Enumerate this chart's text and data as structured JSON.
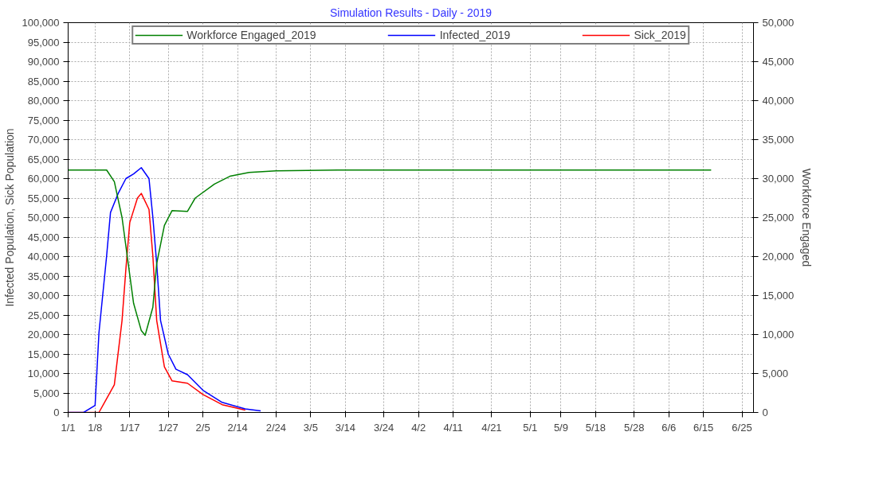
{
  "chart_data": {
    "type": "line",
    "title": "Simulation Results - Daily - 2019",
    "ylabel": "Infected Population, Sick Population",
    "y2label": "Workforce Engaged",
    "series": [
      {
        "name": "Workforce Engaged_2019",
        "color": "#008000",
        "axis": "y2",
        "x": [
          "2019-01-01",
          "2019-01-11",
          "2019-01-13",
          "2019-01-15",
          "2019-01-18",
          "2019-01-20",
          "2019-01-21",
          "2019-01-23",
          "2019-01-24",
          "2019-01-26",
          "2019-01-28",
          "2019-02-01",
          "2019-02-03",
          "2019-02-08",
          "2019-02-12",
          "2019-02-17",
          "2019-02-24",
          "2019-03-12",
          "2019-06-17"
        ],
        "values": [
          31100,
          31100,
          29600,
          25000,
          14000,
          10500,
          9900,
          13500,
          19100,
          24000,
          25900,
          25800,
          27500,
          29300,
          30300,
          30800,
          31000,
          31100,
          31100
        ]
      },
      {
        "name": "Infected_2019",
        "color": "#0000ff",
        "x": [
          "2019-01-01",
          "2019-01-05",
          "2019-01-08",
          "2019-01-09",
          "2019-01-11",
          "2019-01-12",
          "2019-01-14",
          "2019-01-16",
          "2019-01-18",
          "2019-01-20",
          "2019-01-22",
          "2019-01-23",
          "2019-01-24",
          "2019-01-25",
          "2019-01-27",
          "2019-01-29",
          "2019-02-01",
          "2019-02-05",
          "2019-02-10",
          "2019-02-16",
          "2019-02-20"
        ],
        "values": [
          0,
          0,
          1800,
          20400,
          40200,
          51300,
          56200,
          60000,
          61200,
          62800,
          60000,
          50100,
          38200,
          23600,
          15000,
          11100,
          9700,
          5700,
          2600,
          900,
          400
        ]
      },
      {
        "name": "Sick_2019",
        "color": "#ff0000",
        "x": [
          "2019-01-01",
          "2019-01-09",
          "2019-01-13",
          "2019-01-15",
          "2019-01-16",
          "2019-01-17",
          "2019-01-19",
          "2019-01-20",
          "2019-01-22",
          "2019-01-23",
          "2019-01-24",
          "2019-01-26",
          "2019-01-28",
          "2019-02-01",
          "2019-02-05",
          "2019-02-10",
          "2019-02-16"
        ],
        "values": [
          0,
          0,
          7100,
          23600,
          36800,
          48700,
          55000,
          56200,
          52100,
          40200,
          23600,
          11700,
          8100,
          7500,
          4600,
          2000,
          600
        ]
      }
    ],
    "xlim": [
      "2019-01-01",
      "2019-06-28"
    ],
    "xticks": [
      {
        "value": "2019-01-01",
        "label": "1/1"
      },
      {
        "value": "2019-01-08",
        "label": "1/8"
      },
      {
        "value": "2019-01-17",
        "label": "1/17"
      },
      {
        "value": "2019-01-27",
        "label": "1/27"
      },
      {
        "value": "2019-02-05",
        "label": "2/5"
      },
      {
        "value": "2019-02-14",
        "label": "2/14"
      },
      {
        "value": "2019-02-24",
        "label": "2/24"
      },
      {
        "value": "2019-03-05",
        "label": "3/5"
      },
      {
        "value": "2019-03-14",
        "label": "3/14"
      },
      {
        "value": "2019-03-24",
        "label": "3/24"
      },
      {
        "value": "2019-04-02",
        "label": "4/2"
      },
      {
        "value": "2019-04-11",
        "label": "4/11"
      },
      {
        "value": "2019-04-21",
        "label": "4/21"
      },
      {
        "value": "2019-05-01",
        "label": "5/1"
      },
      {
        "value": "2019-05-09",
        "label": "5/9"
      },
      {
        "value": "2019-05-18",
        "label": "5/18"
      },
      {
        "value": "2019-05-28",
        "label": "5/28"
      },
      {
        "value": "2019-06-06",
        "label": "6/6"
      },
      {
        "value": "2019-06-15",
        "label": "6/15"
      },
      {
        "value": "2019-06-25",
        "label": "6/25"
      }
    ],
    "ylim": [
      0,
      100000
    ],
    "yticks": [
      {
        "value": 0,
        "label": "0"
      },
      {
        "value": 5000,
        "label": "5,000"
      },
      {
        "value": 10000,
        "label": "10,000"
      },
      {
        "value": 15000,
        "label": "15,000"
      },
      {
        "value": 20000,
        "label": "20,000"
      },
      {
        "value": 25000,
        "label": "25,000"
      },
      {
        "value": 30000,
        "label": "30,000"
      },
      {
        "value": 35000,
        "label": "35,000"
      },
      {
        "value": 40000,
        "label": "40,000"
      },
      {
        "value": 45000,
        "label": "45,000"
      },
      {
        "value": 50000,
        "label": "50,000"
      },
      {
        "value": 55000,
        "label": "55,000"
      },
      {
        "value": 60000,
        "label": "60,000"
      },
      {
        "value": 65000,
        "label": "65,000"
      },
      {
        "value": 70000,
        "label": "70,000"
      },
      {
        "value": 75000,
        "label": "75,000"
      },
      {
        "value": 80000,
        "label": "80,000"
      },
      {
        "value": 85000,
        "label": "85,000"
      },
      {
        "value": 90000,
        "label": "90,000"
      },
      {
        "value": 95000,
        "label": "95,000"
      },
      {
        "value": 100000,
        "label": "100,000"
      }
    ],
    "y2lim": [
      0,
      50000
    ],
    "y2ticks": [
      {
        "value": 0,
        "label": "0"
      },
      {
        "value": 5000,
        "label": "5,000"
      },
      {
        "value": 10000,
        "label": "10,000"
      },
      {
        "value": 15000,
        "label": "15,000"
      },
      {
        "value": 20000,
        "label": "20,000"
      },
      {
        "value": 25000,
        "label": "25,000"
      },
      {
        "value": 30000,
        "label": "30,000"
      },
      {
        "value": 35000,
        "label": "35,000"
      },
      {
        "value": 40000,
        "label": "40,000"
      },
      {
        "value": 45000,
        "label": "45,000"
      },
      {
        "value": 50000,
        "label": "50,000"
      }
    ],
    "grid": true,
    "legend": "top",
    "line_style": "solid",
    "marker": "none"
  }
}
